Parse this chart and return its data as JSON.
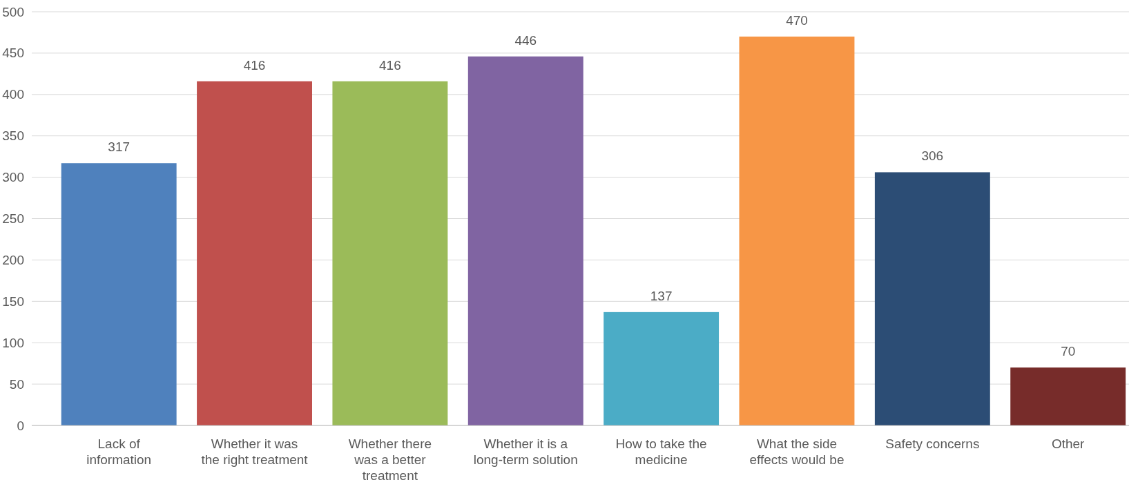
{
  "chart_data": {
    "type": "bar",
    "categories": [
      "Lack of\ninformation",
      "Whether it was\nthe right treatment",
      "Whether there\nwas a better\ntreatment",
      "Whether it is a\nlong-term solution",
      "How to take the\nmedicine",
      "What the side\neffects would be",
      "Safety concerns",
      "Other"
    ],
    "values": [
      317,
      416,
      416,
      446,
      137,
      470,
      306,
      70
    ],
    "colors": [
      "#4f81bd",
      "#c0504d",
      "#9bbb59",
      "#8064a2",
      "#4bacc6",
      "#f79646",
      "#2c4d75",
      "#772c2a"
    ],
    "ylim": [
      0,
      500
    ],
    "yticks": [
      0,
      50,
      100,
      150,
      200,
      250,
      300,
      350,
      400,
      450,
      500
    ],
    "grid": "y",
    "data_labels": true
  }
}
